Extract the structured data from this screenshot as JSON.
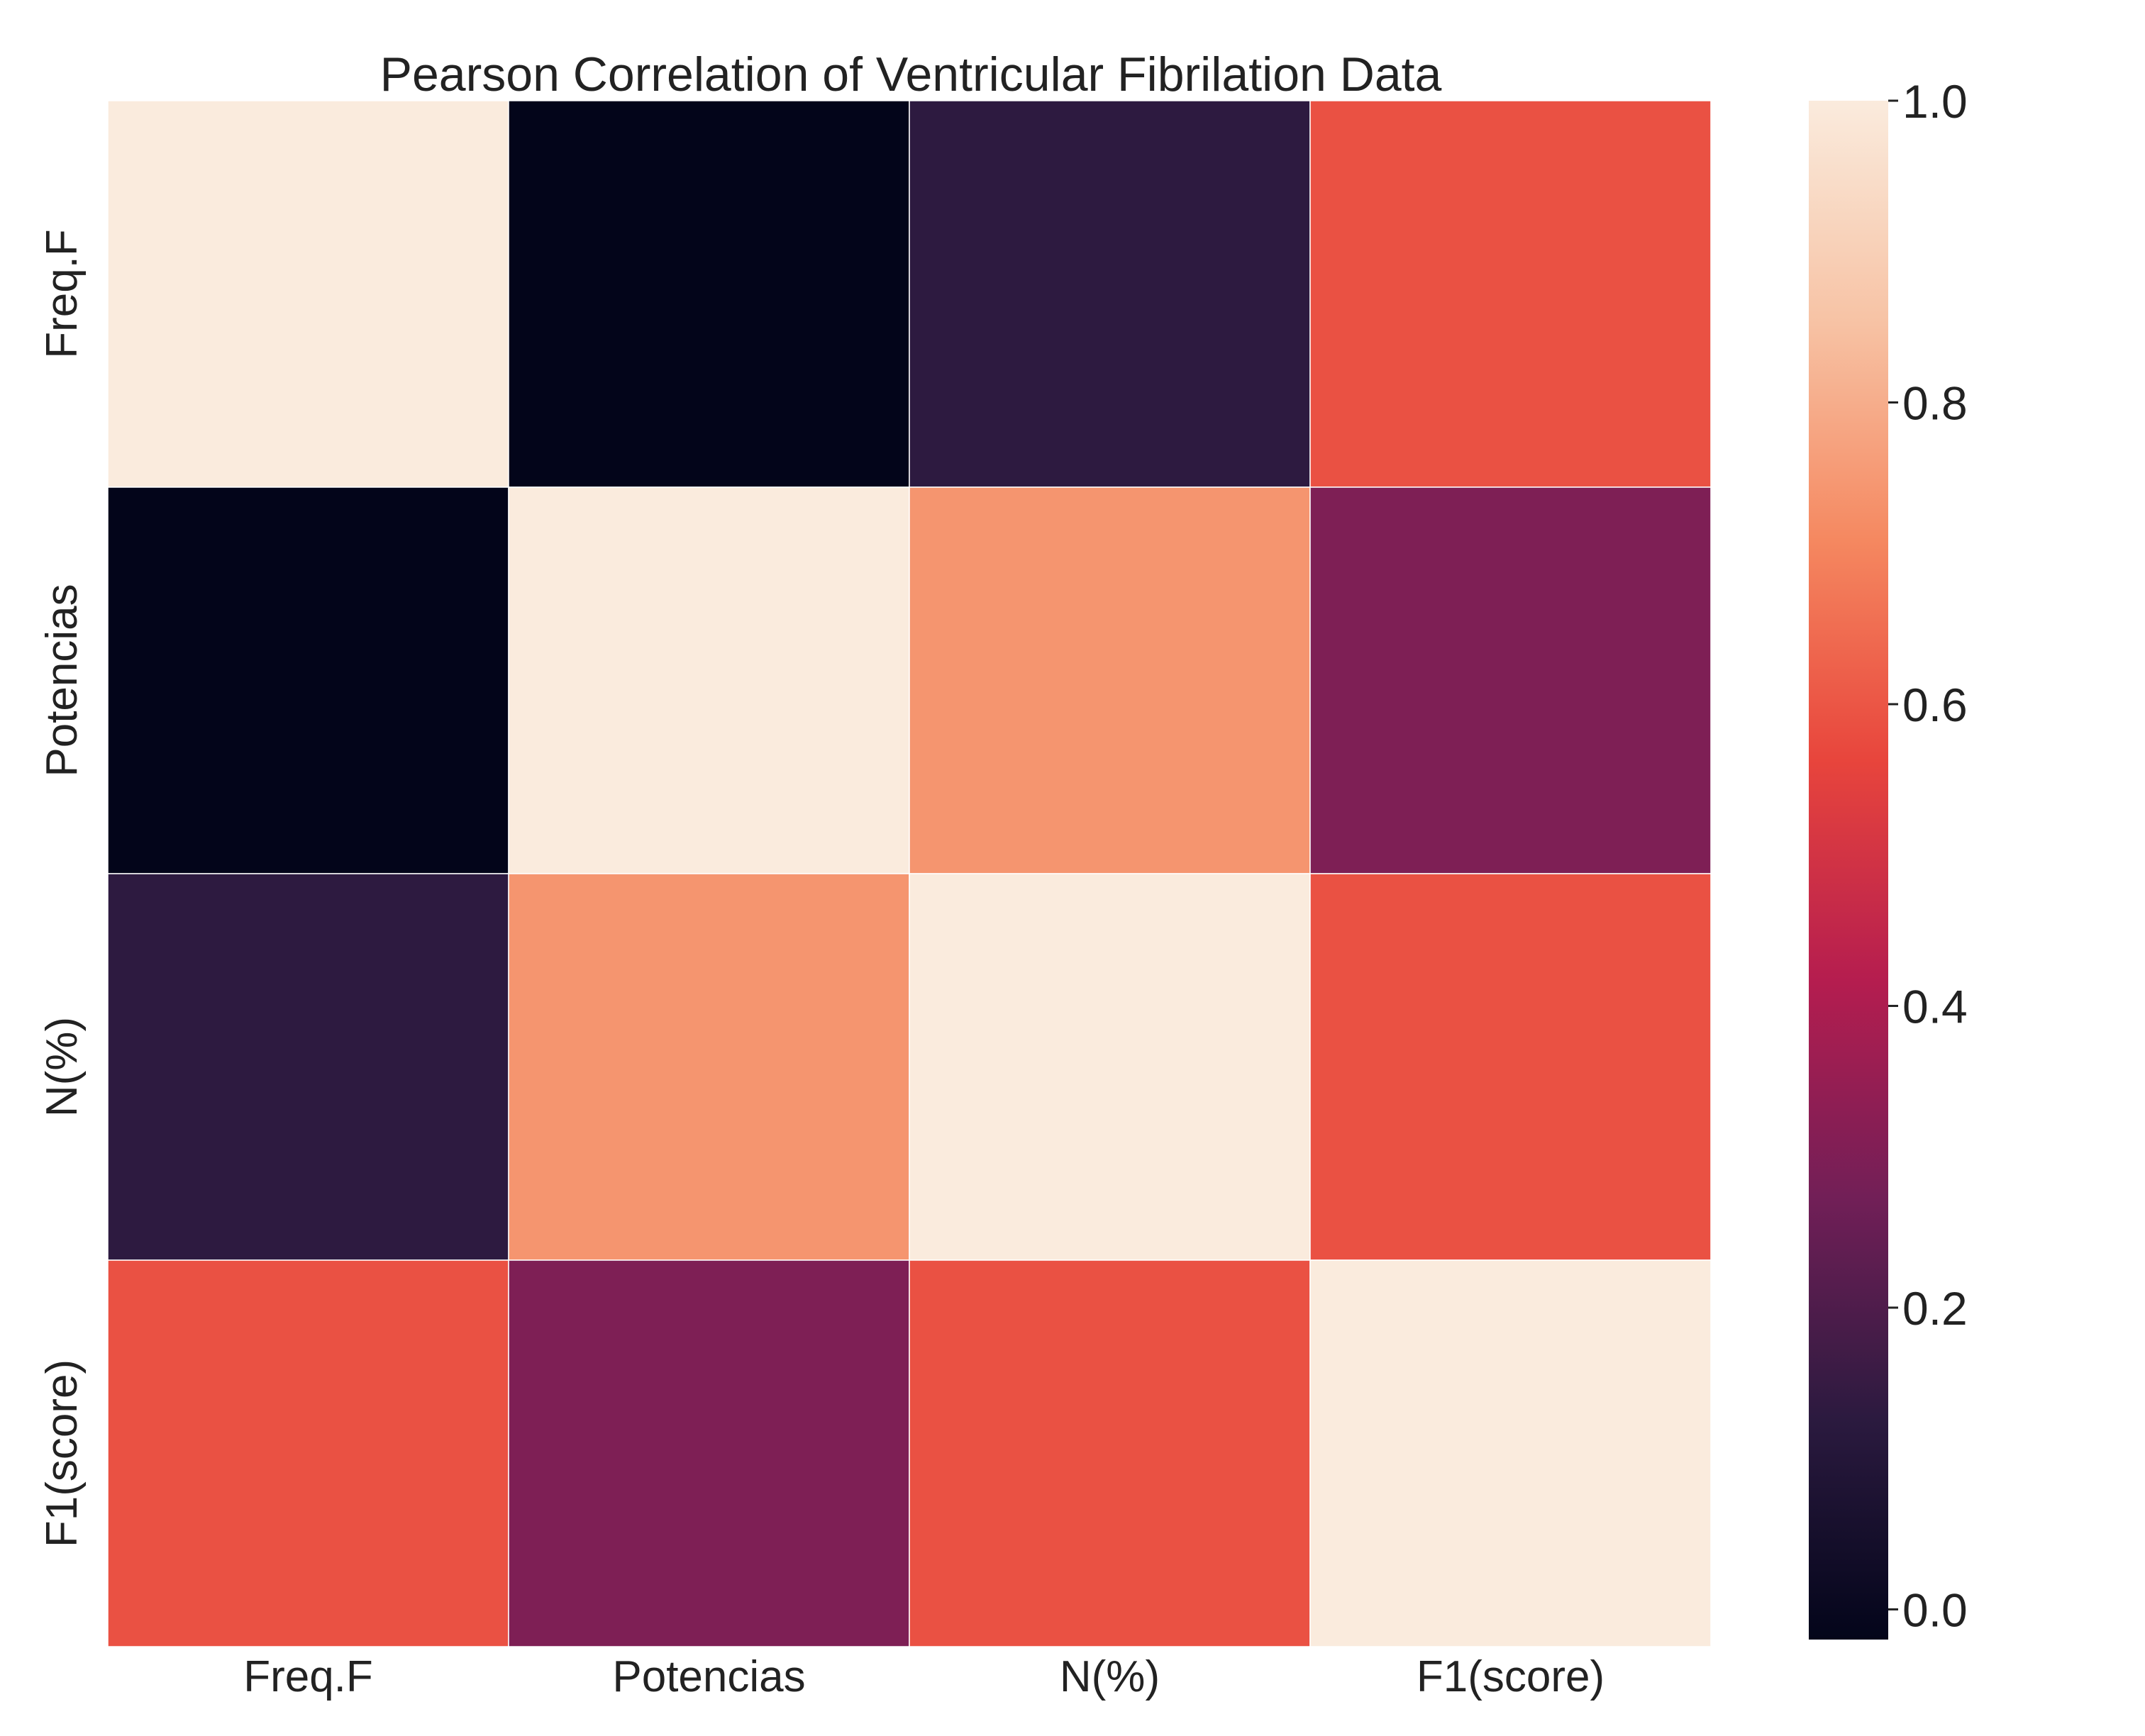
{
  "chart_data": {
    "type": "heatmap",
    "title": "Pearson Correlation of Ventricular Fibrilation Data",
    "xlabels": [
      "Freq.F",
      "Potencias",
      "N(%)",
      "F1(score)"
    ],
    "ylabels": [
      "Freq.F",
      "Potencias",
      "N(%)",
      "F1(score)"
    ],
    "values": [
      [
        1.0,
        -0.02,
        0.13,
        0.59
      ],
      [
        -0.02,
        1.0,
        0.74,
        0.3
      ],
      [
        0.13,
        0.74,
        1.0,
        0.59
      ],
      [
        0.59,
        0.3,
        0.59,
        1.0
      ]
    ],
    "colorbar": {
      "vmin": -0.02,
      "vmax": 1.0,
      "ticks": [
        0.0,
        0.2,
        0.4,
        0.6,
        0.8,
        1.0
      ],
      "tick_labels": [
        "0.0",
        "0.2",
        "0.4",
        "0.6",
        "0.8",
        "1.0"
      ],
      "colormap": "rocket"
    },
    "colormap_stops": [
      "#03051a",
      "#2b1a3f",
      "#711f57",
      "#b51d4f",
      "#e8453c",
      "#f58860",
      "#f7c3a5",
      "#faebdd"
    ]
  }
}
